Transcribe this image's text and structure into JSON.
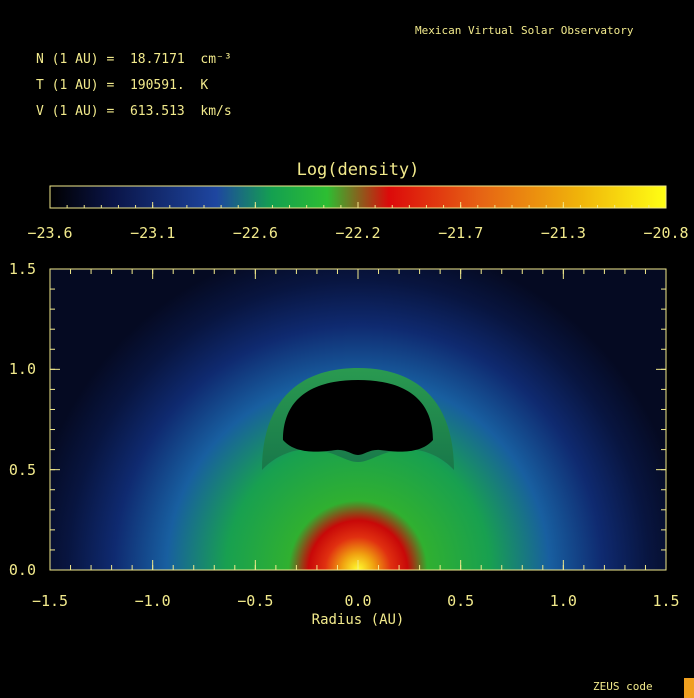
{
  "header": {
    "organization": "Mexican Virtual Solar Observatory"
  },
  "parameters": [
    {
      "label": "N (1 AU) =",
      "value": "18.7171",
      "unit": "cm⁻³"
    },
    {
      "label": "T (1 AU) =",
      "value": "190591.",
      "unit": "K"
    },
    {
      "label": "V (1 AU) =",
      "value": "613.513",
      "unit": "km/s"
    }
  ],
  "footer": {
    "code": "ZEUS code"
  },
  "colors": {
    "axis": "#f2ea8c",
    "background": "#000000"
  },
  "chart_data": {
    "type": "heatmap",
    "colorbar": {
      "title": "Log(density)",
      "range": [
        -23.6,
        -20.8
      ],
      "ticks": [
        "−23.6",
        "−23.1",
        "−22.6",
        "−22.2",
        "−21.7",
        "−21.3",
        "−20.8"
      ],
      "colormap": [
        "#000000",
        "#0a1446",
        "#1e46a0",
        "#14a050",
        "#2dbe32",
        "#dc0a0a",
        "#e66414",
        "#f0b40a",
        "#ffff14"
      ]
    },
    "xlabel": "Radius (AU)",
    "ylabel": "",
    "xlim": [
      -1.5,
      1.5
    ],
    "ylim": [
      0.0,
      1.5
    ],
    "xticks": [
      "−1.5",
      "−1.0",
      "−0.5",
      "0.0",
      "0.5",
      "1.0",
      "1.5"
    ],
    "yticks": [
      "0.0",
      "0.5",
      "1.0",
      "1.5"
    ],
    "features": [
      {
        "name": "dense core",
        "center": [
          0.0,
          0.0
        ],
        "radius": 0.2,
        "log_density": -21.0
      },
      {
        "name": "shell",
        "center_x": 0.0,
        "y_range": [
          0.55,
          0.98
        ],
        "x_range": [
          -0.48,
          0.48
        ],
        "log_density": -22.4
      },
      {
        "name": "cavity",
        "center_x": 0.0,
        "y_range": [
          0.6,
          0.93
        ],
        "x_range": [
          -0.37,
          0.37
        ],
        "log_density": -23.6
      }
    ]
  }
}
